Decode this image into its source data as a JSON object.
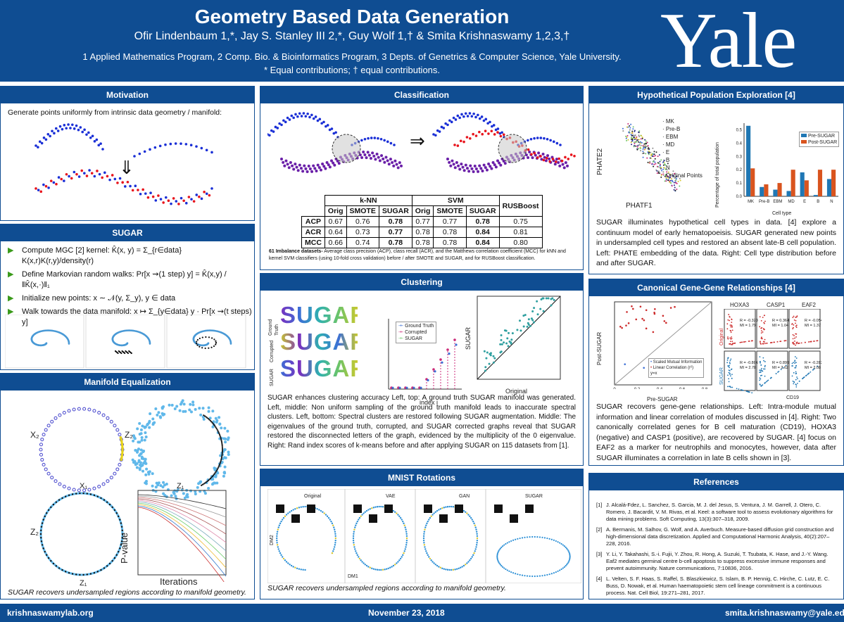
{
  "header": {
    "title": "Geometry Based Data Generation",
    "authors": "Ofir Lindenbaum 1,*, Jay S. Stanley III 2,*, Guy Wolf 1,†  & Smita Krishnaswamy 1,2,3,†",
    "affiliations": "1 Applied Mathematics Program, 2 Comp. Bio. & Bioinformatics Program, 3 Depts. of Genetrics & Computer Science, Yale University.",
    "contributions": "* Equal contributions; † equal contributions.",
    "logo": "Yale"
  },
  "footer": {
    "left": "krishnaswamylab.org",
    "center": "November 23, 2018",
    "right": "smita.krishnaswamy@yale.edu"
  },
  "motivation": {
    "title": "Motivation",
    "text": "Generate points uniformly from intrinsic data geometry / manifold:",
    "arrow": "⇓"
  },
  "sugar": {
    "title": "SUGAR",
    "bullets": [
      "Compute MGC [2] kernel: K̂(x, y) = Σ_{r∈data} K(x,r)K(r,y)/density(r)",
      "Define Markovian random walks: Pr[x ⇝(1 step) y] = K̂(x,y) / ‖K̂(x,·)‖₁",
      "Initialize new points: x ∼ 𝒩(y, Σ_y), y ∈ data",
      "Walk towards the data manifold: x ↦ Σ_{y∈data} y · Pr[x ⇝(t steps) y]"
    ]
  },
  "manifold": {
    "title": "Manifold Equalization",
    "labels": {
      "x2": "X₂",
      "x1": "X₁",
      "z2a": "Z₂",
      "z1a": "Z₁",
      "z2b": "Z₂",
      "z1b": "Z₁",
      "pvalue": "P-value",
      "iterations": "Iterations"
    },
    "caption": "SUGAR recovers undersampled regions according to manifold geometry."
  },
  "classification": {
    "title": "Classification",
    "arrow": "⇒",
    "table": {
      "groups": [
        "k-NN",
        "SVM",
        "RUSBoost"
      ],
      "subheaders": [
        "Orig",
        "SMOTE",
        "SUGAR",
        "Orig",
        "SMOTE",
        "SUGAR"
      ],
      "rows": [
        {
          "name": "ACP",
          "cells": [
            "0.67",
            "0.76",
            "0.78",
            "0.77",
            "0.77",
            "0.78",
            "0.75"
          ]
        },
        {
          "name": "ACR",
          "cells": [
            "0.64",
            "0.73",
            "0.77",
            "0.78",
            "0.78",
            "0.84",
            "0.81"
          ]
        },
        {
          "name": "MCC",
          "cells": [
            "0.66",
            "0.74",
            "0.78",
            "0.78",
            "0.78",
            "0.84",
            "0.80"
          ]
        }
      ]
    },
    "caption_bold": "61 Imbalance datasets-",
    "caption": " Average class precision (ACP), class recall (ACR), and the Matthews correlation coefficient (MCC) for kNN and kernel SVM classifiers (using 10-fold cross validation) before / after SMOTE and SUGAR, and for RUSBoost classification."
  },
  "clustering": {
    "title": "Clustering",
    "word": "SUGAR",
    "rowlabels": [
      "Ground Truth",
      "Corrupted",
      "SUGAR"
    ],
    "legend": [
      "Ground Truth",
      "Corrupted",
      "SUGAR"
    ],
    "xlabel_mid": "index i",
    "ylabel_right": "SUGAR",
    "xlabel_right": "Original",
    "caption": "SUGAR enhances clustering accuracy Left, top: A ground truth SUGAR manifold was generated. Left, middle: Non uniform sampling of the ground truth manifold leads to inaccurate spectral clusters. Left, bottom: Spectral clusters are restored following SUGAR augmentation. Middle: The eigenvalues of the ground truth, corrupted, and SUGAR corrected graphs reveal that SUGAR restored the disconnected letters of the graph, evidenced by the multiplicity of the 0 eigenvalue. Right: Rand index scores of k-means before and after applying SUGAR on 115 datasets from [1]."
  },
  "mnist": {
    "title": "MNIST Rotations",
    "panels": [
      "Original",
      "VAE",
      "GAN",
      "SUGAR"
    ],
    "ylabel": "DM2",
    "xlabel": "DM1",
    "caption": "SUGAR recovers undersampled regions according to manifold geometry."
  },
  "hypo": {
    "title": "Hypothetical Population Exploration [4]",
    "legend_cells": [
      "MK",
      "Pre-B",
      "EBM",
      "MD",
      "E",
      "B",
      "N",
      "Original Points"
    ],
    "bar_legend": [
      "Pre-SUGAR",
      "Post-SUGAR"
    ],
    "ylabel_left": "PHATE2",
    "xlabel_left": "PHATF1",
    "ylabel_bar": "Percentage of total population",
    "xlabel_bar": "Cell type",
    "caption": "SUGAR illuminates hypothetical cell types in data. [4] explore a continuum model of early hematopoeisis. SUGAR generated new points in undersampled cell types and restored an absent late-B cell population. Left: PHATE embedding of the data. Right: Cell type distribution before and after SUGAR."
  },
  "chart_data": {
    "type": "bar",
    "categories": [
      "MK",
      "Pre-B",
      "EBM",
      "MD",
      "E",
      "B",
      "N"
    ],
    "series": [
      {
        "name": "Pre-SUGAR",
        "values": [
          0.53,
          0.07,
          0.05,
          0.04,
          0.18,
          0.01,
          0.13
        ]
      },
      {
        "name": "Post-SUGAR",
        "values": [
          0.21,
          0.09,
          0.1,
          0.2,
          0.12,
          0.2,
          0.2
        ]
      }
    ],
    "yticks": [
      "0.0",
      "0.1",
      "0.2",
      "0.3",
      "0.4",
      "0.5"
    ],
    "ylim": [
      0,
      0.55
    ],
    "ylabel": "Percentage of total population",
    "xlabel": "Cell type",
    "legend": "top-right"
  },
  "gene": {
    "title": "Canonical Gene-Gene Relationships [4]",
    "ylabel": "Post-SUGAR",
    "xlabel": "Pre-SUGAR",
    "legend": [
      "Scaled Mutual Information",
      "Linear Correlation (r²)",
      "y=x"
    ],
    "xticks": [
      "0",
      "0.2",
      "0.4",
      "0.6",
      "0.8"
    ],
    "genes": [
      "HOXA3",
      "CASP1",
      "EAF2"
    ],
    "side_labels": [
      "Original",
      "SUGAR"
    ],
    "stats_orig": [
      "R = -0.323\nMI = 1.79",
      "R = 0.364\nMI = 1.04",
      "R = -0.054\nMI = 1.37"
    ],
    "stats_sugar": [
      "R = -0.806\nMI = 2.78",
      "R = 0.899\nMI = 2.62",
      "R = -0.282\nMI = 2.08"
    ],
    "cd19": "CD19",
    "caption": "SUGAR recovers gene-gene relationships. Left: Intra-module mutual information and linear correlation of modules discussed in [4]. Right: Two canonically correlated genes for B cell maturation (CD19), HOXA3 (negative) and CASP1 (positive), are recovered by SUGAR. [4] focus on EAF2 as a marker for neutrophils and monocytes, however, data after SUGAR illuminates a correlation in late B cells shown in [3]."
  },
  "references": {
    "title": "References",
    "items": [
      {
        "n": "[1]",
        "t": "J. Alcalá-Fdez, L. Sanchez, S. Garcia, M. J. del Jesus, S. Ventura, J. M. Garrell, J. Otero, C. Romero, J. Bacardit, V. M. Rivas, et al. Keel: a software tool to assess evolutionary algorithms for data mining problems. Soft Computing, 13(3):307–318, 2009."
      },
      {
        "n": "[2]",
        "t": "A. Bermanis, M. Salhov, G. Wolf, and A. Averbuch. Measure-based diffusion grid construction and high-dimensional data discretization. Applied and Computational Harmonic Analysis, 40(2):207–228, 2016."
      },
      {
        "n": "[3]",
        "t": "Y. Li, Y. Takahashi, S.-i. Fujii, Y. Zhou, R. Hong, A. Suzuki, T. Tsubata, K. Hase, and J.-Y. Wang. Eaf2 mediates germinal centre b-cell apoptosis to suppress excessive immune responses and prevent autoimmunity. Nature communications, 7:10836, 2016."
      },
      {
        "n": "[4]",
        "t": "L. Velten, S. F. Haas, S. Raffel, S. Blaszkiewicz, S. Islam, B. P. Hennig, C. Hirche, C. Lutz, E. C. Buss, D. Nowak, et al. Human haematopoietic stem cell lineage commitment is a continuous process. Nat. Cell Biol, 19:271–281, 2017."
      }
    ]
  }
}
